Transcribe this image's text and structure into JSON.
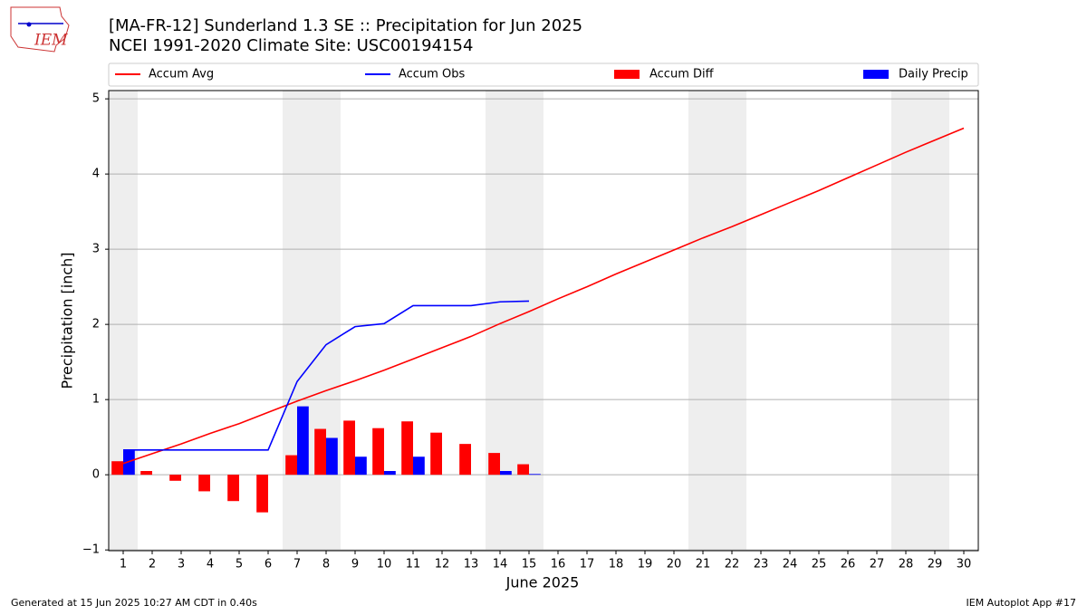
{
  "logo_text": "IEM",
  "chart_data": {
    "type": "combo",
    "title": "[MA-FR-12] Sunderland 1.3 SE :: Precipitation for Jun 2025",
    "subtitle": "NCEI 1991-2020 Climate Site: USC00194154",
    "x_label": "June 2025",
    "y_label": "Precipitation [inch]",
    "x": [
      1,
      2,
      3,
      4,
      5,
      6,
      7,
      8,
      9,
      10,
      11,
      12,
      13,
      14,
      15,
      16,
      17,
      18,
      19,
      20,
      21,
      22,
      23,
      24,
      25,
      26,
      27,
      28,
      29,
      30
    ],
    "xlim": [
      0.5,
      30.5
    ],
    "xticks": [
      1,
      2,
      3,
      4,
      5,
      6,
      7,
      8,
      9,
      10,
      11,
      12,
      13,
      14,
      15,
      16,
      17,
      18,
      19,
      20,
      21,
      22,
      23,
      24,
      25,
      26,
      27,
      28,
      29,
      30
    ],
    "ylim": [
      -1.01,
      5.11
    ],
    "yticks": [
      {
        "value": -1,
        "label": "−1"
      },
      0,
      1,
      2,
      3,
      4,
      5
    ],
    "grid": true,
    "shaded": [
      [
        0.5,
        1.5
      ],
      [
        6.5,
        8.5
      ],
      [
        13.5,
        15.5
      ],
      [
        20.5,
        22.5
      ],
      [
        27.5,
        29.5
      ]
    ],
    "shade_color": "#eeeeee",
    "series": [
      {
        "name": "Accum Avg",
        "kind": "line",
        "color": "#ff0000",
        "values": [
          0.15,
          0.28,
          0.41,
          0.55,
          0.68,
          0.83,
          0.98,
          1.12,
          1.25,
          1.39,
          1.54,
          1.69,
          1.84,
          2.01,
          2.17,
          2.34,
          2.5,
          2.67,
          2.83,
          2.99,
          3.15,
          3.3,
          3.46,
          3.62,
          3.78,
          3.95,
          4.12,
          4.29,
          4.45,
          4.61
        ]
      },
      {
        "name": "Accum Obs",
        "kind": "line",
        "color": "#0000ff",
        "values": [
          0.33,
          0.33,
          0.33,
          0.33,
          0.33,
          0.33,
          1.24,
          1.73,
          1.97,
          2.01,
          2.25,
          2.25,
          2.25,
          2.3,
          2.31,
          null,
          null,
          null,
          null,
          null,
          null,
          null,
          null,
          null,
          null,
          null,
          null,
          null,
          null,
          null
        ]
      },
      {
        "name": "Accum Diff",
        "kind": "bar",
        "side": "left",
        "color": "#ff0000",
        "values": [
          0.18,
          0.05,
          -0.08,
          -0.22,
          -0.35,
          -0.5,
          0.26,
          0.61,
          0.72,
          0.62,
          0.71,
          0.56,
          0.41,
          0.29,
          0.14,
          null,
          null,
          null,
          null,
          null,
          null,
          null,
          null,
          null,
          null,
          null,
          null,
          null,
          null,
          null
        ]
      },
      {
        "name": "Daily Precip",
        "kind": "bar",
        "side": "right",
        "color": "#0000ff",
        "values": [
          0.33,
          0,
          0,
          0,
          0,
          0,
          0.91,
          0.49,
          0.24,
          0.05,
          0.24,
          0,
          0,
          0.05,
          0.01,
          null,
          null,
          null,
          null,
          null,
          null,
          null,
          null,
          null,
          null,
          null,
          null,
          null,
          null,
          null
        ]
      }
    ]
  },
  "footer_left": "Generated at 15 Jun 2025 10:27 AM CDT in 0.40s",
  "footer_right": "IEM Autoplot App #17"
}
